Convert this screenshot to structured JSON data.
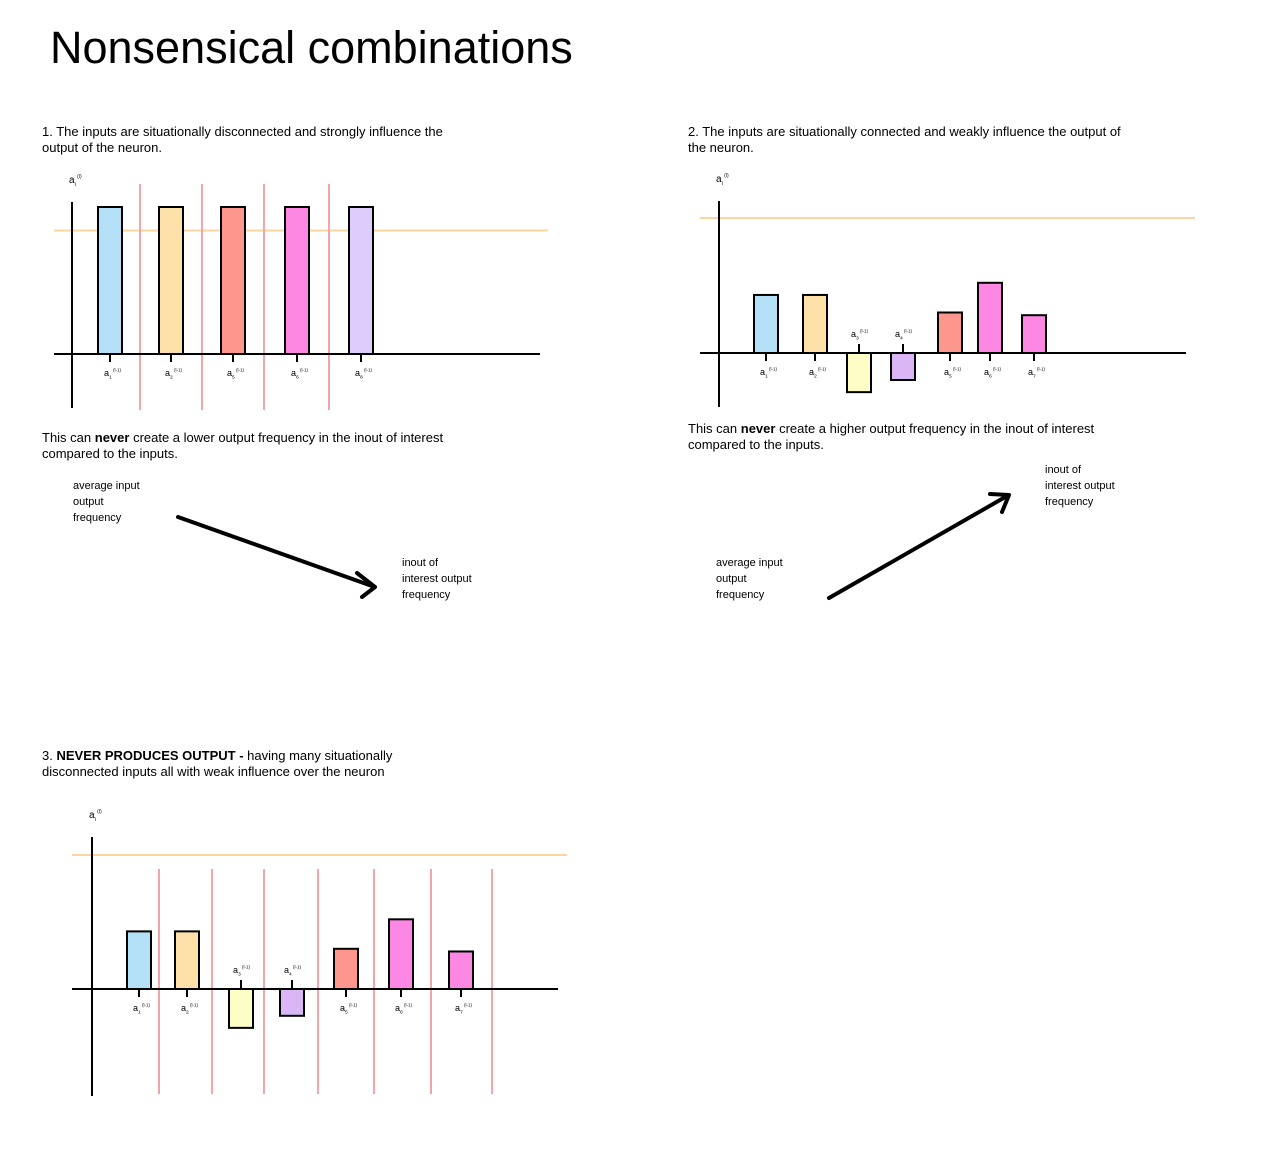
{
  "title": "Nonsensical combinations",
  "colors": {
    "blue": "#b3e0f7",
    "orange": "#fde1a8",
    "yellow": "#fdfdc5",
    "purple": "#dbb6f6",
    "salmon": "#fd978d",
    "pink": "#fd88e3",
    "lavender": "#ddccfc",
    "threshold": "#fbd4a0",
    "separator": "#f5a4a9"
  },
  "sections": [
    {
      "number": "1.",
      "caption": "The inputs are situationally disconnected and strongly influence the output of the neuron.",
      "y_axis_label": "a",
      "y_axis_sub": "i",
      "y_axis_sup": "(l)",
      "bars": [
        {
          "label": "a",
          "sub": "1",
          "sup": "(l-1)",
          "value": 1.0,
          "color": "blue"
        },
        {
          "label": "a",
          "sub": "2",
          "sup": "(l-1)",
          "value": 1.0,
          "color": "orange"
        },
        {
          "label": "a",
          "sub": "5",
          "sup": "(l-1)",
          "value": 1.0,
          "color": "salmon"
        },
        {
          "label": "a",
          "sub": "6",
          "sup": "(l-1)",
          "value": 1.0,
          "color": "pink"
        },
        {
          "label": "a",
          "sub": "8",
          "sup": "(l-1)",
          "value": 1.0,
          "color": "lavender"
        }
      ],
      "threshold": 0.84,
      "separators": true,
      "conclusion_prefix": "This can ",
      "conclusion_bold": "never",
      "conclusion_suffix": " create a lower output frequency in the inout of interest compared to the inputs.",
      "arrow_from_label": [
        "average input",
        "output",
        "frequency"
      ],
      "arrow_to_label": [
        "inout of",
        "interest output",
        "frequency"
      ]
    },
    {
      "number": "2.",
      "caption": "The inputs are situationally connected and weakly influence the output of the neuron.",
      "y_axis_label": "a",
      "y_axis_sub": "i",
      "y_axis_sup": "(l)",
      "bars": [
        {
          "label": "a",
          "sub": "1",
          "sup": "(l-1)",
          "value": 0.43,
          "color": "blue"
        },
        {
          "label": "a",
          "sub": "2",
          "sup": "(l-1)",
          "value": 0.43,
          "color": "orange"
        },
        {
          "label": "a",
          "sub": "3",
          "sup": "(l-1)",
          "value": -0.29,
          "color": "yellow"
        },
        {
          "label": "a",
          "sub": "4",
          "sup": "(l-1)",
          "value": -0.2,
          "color": "purple"
        },
        {
          "label": "a",
          "sub": "5",
          "sup": "(l-1)",
          "value": 0.3,
          "color": "salmon"
        },
        {
          "label": "a",
          "sub": "6",
          "sup": "(l-1)",
          "value": 0.52,
          "color": "pink"
        },
        {
          "label": "a",
          "sub": "7",
          "sup": "(l-1)",
          "value": 0.28,
          "color": "pink"
        }
      ],
      "threshold": 1.0,
      "separators": false,
      "conclusion_prefix": "This can ",
      "conclusion_bold": "never",
      "conclusion_suffix": " create a higher output frequency in the inout of interest compared to the inputs.",
      "arrow_from_label": [
        "average input",
        "output",
        "frequency"
      ],
      "arrow_to_label": [
        "inout of",
        "interest output",
        "frequency"
      ]
    },
    {
      "number": "3.",
      "caption_bold": "NEVER PRODUCES OUTPUT - ",
      "caption": " having many situationally disconnected inputs all with weak influence over the neuron",
      "y_axis_label": "a",
      "y_axis_sub": "i",
      "y_axis_sup": "(l)",
      "bars": [
        {
          "label": "a",
          "sub": "1",
          "sup": "(l-1)",
          "value": 0.43,
          "color": "blue"
        },
        {
          "label": "a",
          "sub": "2",
          "sup": "(l-1)",
          "value": 0.43,
          "color": "orange"
        },
        {
          "label": "a",
          "sub": "3",
          "sup": "(l-1)",
          "value": -0.29,
          "color": "yellow"
        },
        {
          "label": "a",
          "sub": "4",
          "sup": "(l-1)",
          "value": -0.2,
          "color": "purple"
        },
        {
          "label": "a",
          "sub": "5",
          "sup": "(l-1)",
          "value": 0.3,
          "color": "salmon"
        },
        {
          "label": "a",
          "sub": "6",
          "sup": "(l-1)",
          "value": 0.52,
          "color": "pink"
        },
        {
          "label": "a",
          "sub": "7",
          "sup": "(l-1)",
          "value": 0.28,
          "color": "pink"
        }
      ],
      "threshold": 1.0,
      "separators": true
    }
  ]
}
